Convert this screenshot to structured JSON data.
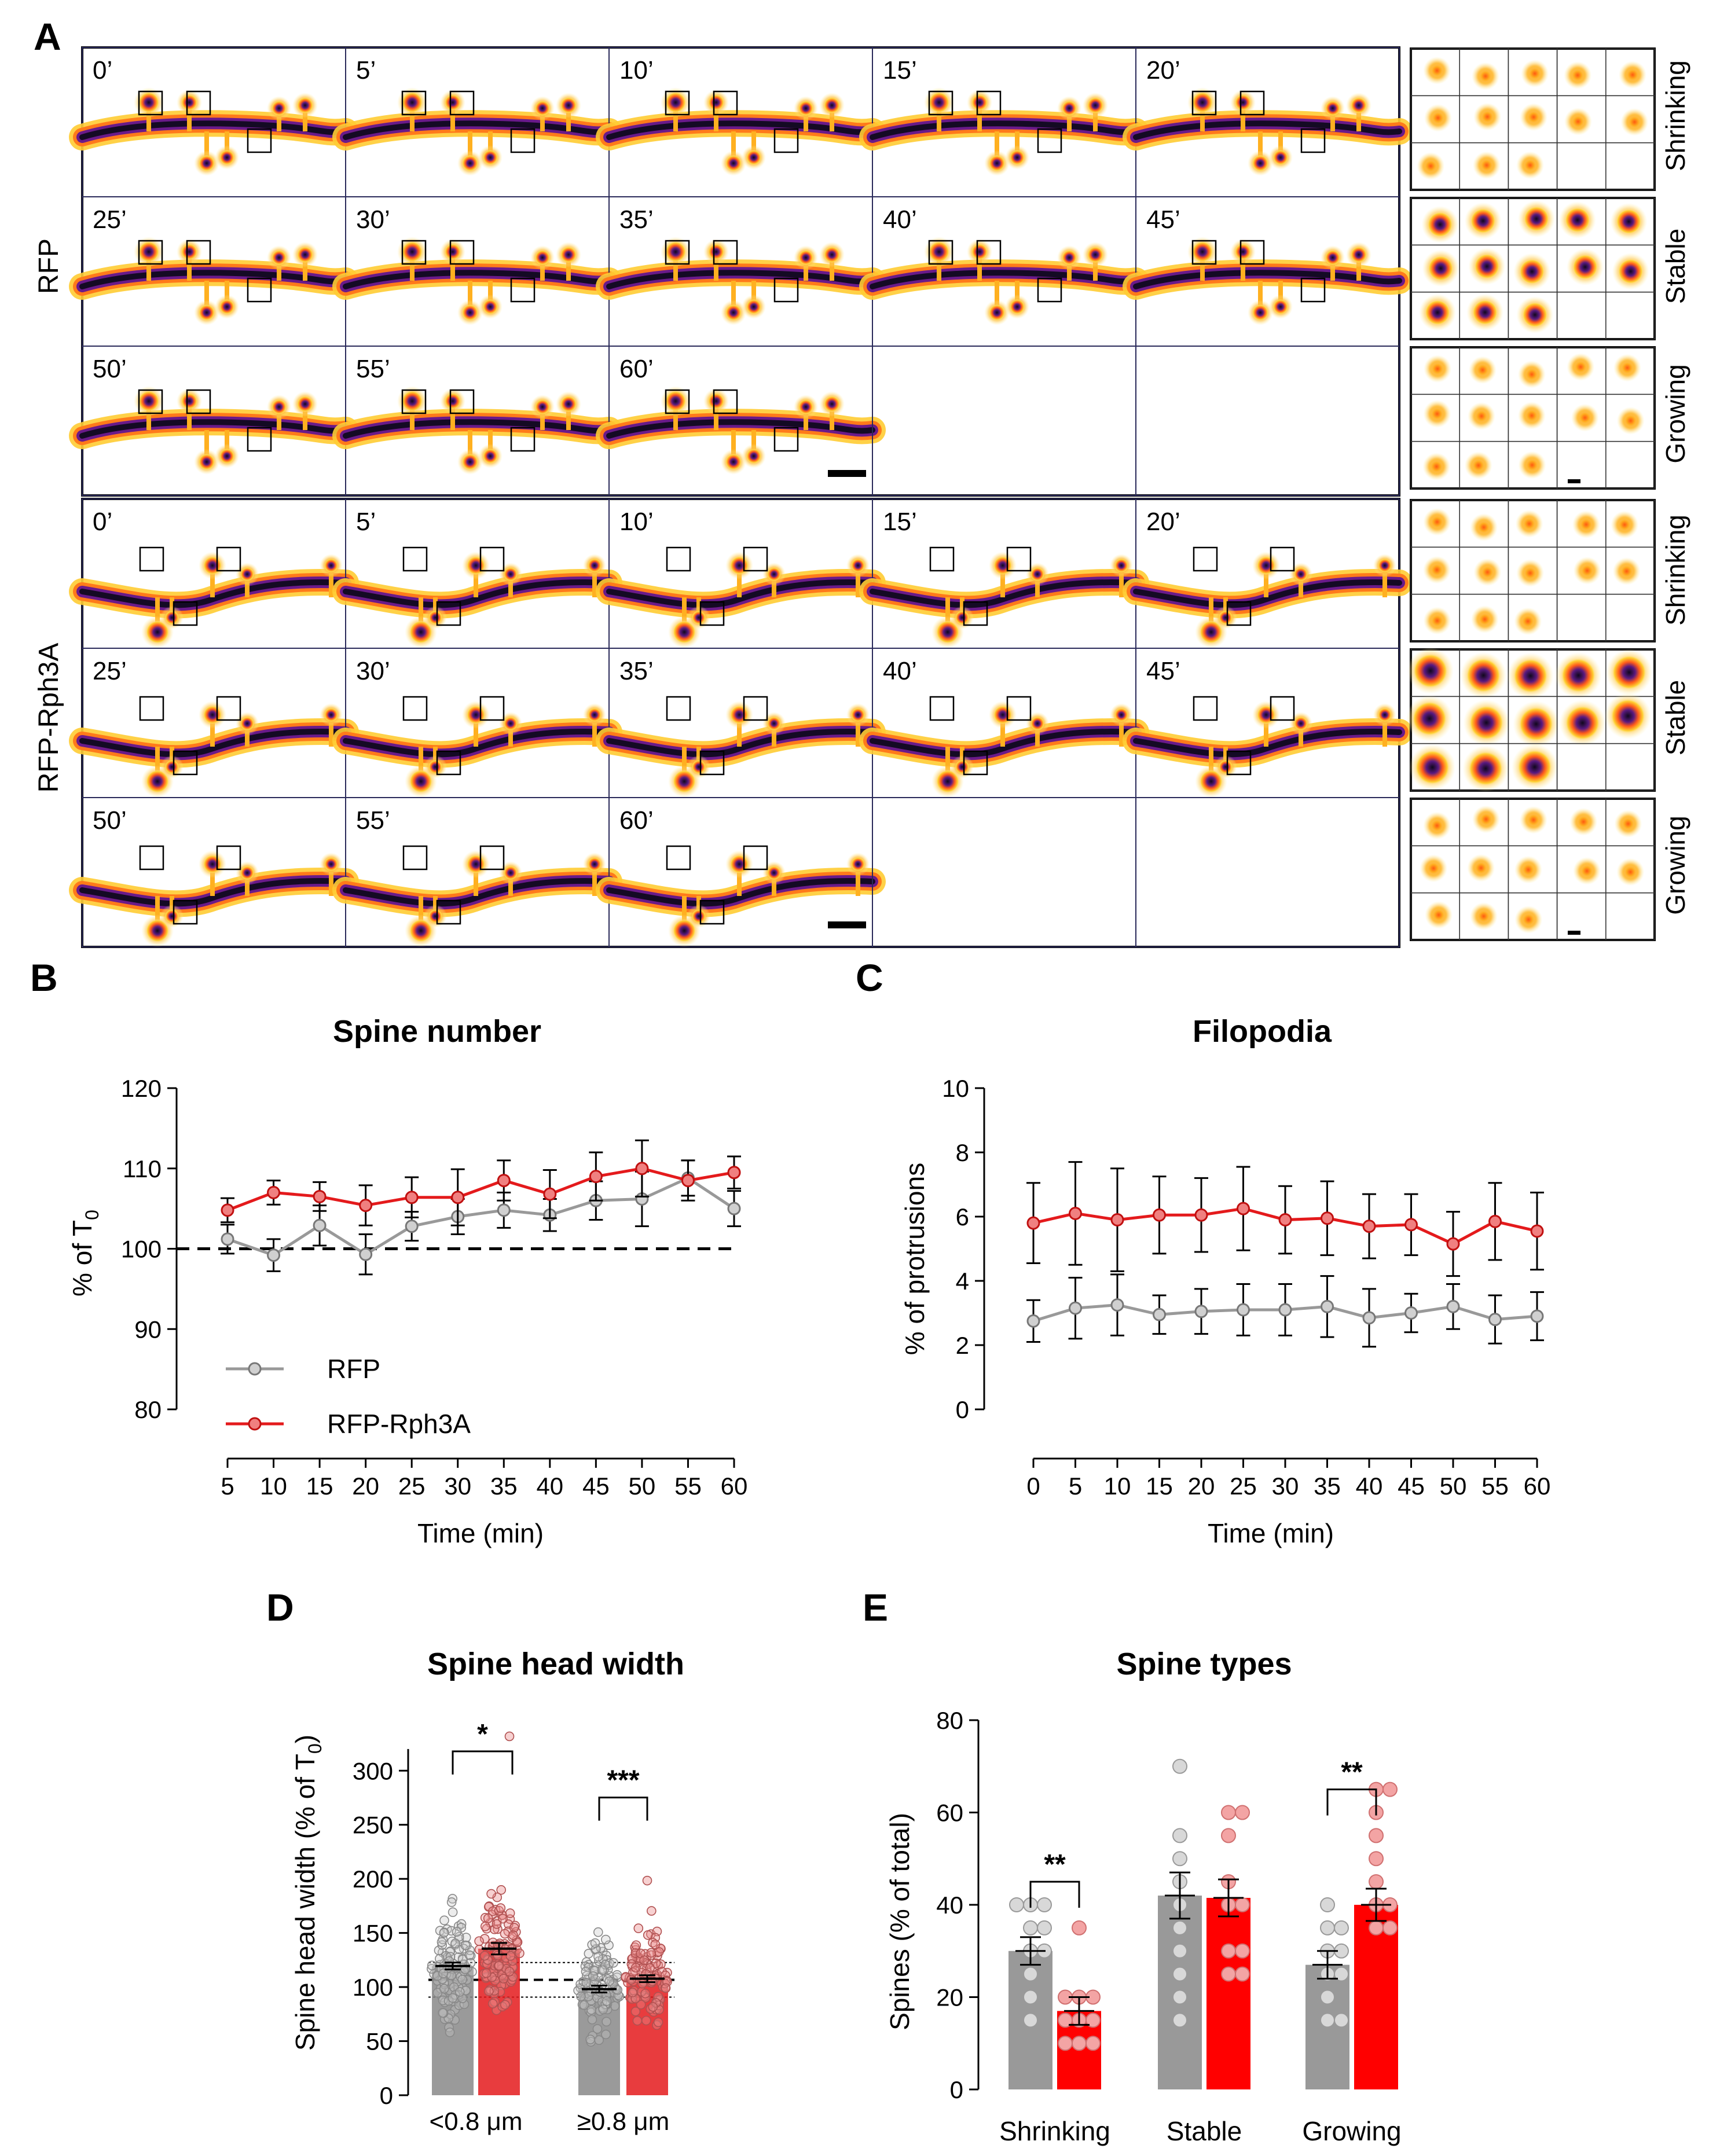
{
  "panels": {
    "A": {
      "letter": "A",
      "groups": [
        {
          "label": "RFP",
          "row_labels": [
            "Shrinking",
            "Stable",
            "Growing"
          ]
        },
        {
          "label": "RFP-Rph3A",
          "row_labels": [
            "Shrinking",
            "Stable",
            "Growing"
          ]
        }
      ],
      "timepoints": [
        "0’",
        "5’",
        "10’",
        "15’",
        "20’",
        "25’",
        "30’",
        "35’",
        "40’",
        "45’",
        "50’",
        "55’",
        "60’"
      ]
    },
    "B": {
      "letter": "B"
    },
    "C": {
      "letter": "C"
    },
    "D": {
      "letter": "D"
    },
    "E": {
      "letter": "E"
    }
  },
  "colors": {
    "rfp": "#999999",
    "rph3a": "#e41a1c",
    "rph3a_light": "#f3a4a4",
    "rfp_dot": "#cccccc"
  },
  "chart_data": [
    {
      "id": "B",
      "type": "line",
      "title": "Spine number",
      "xlabel": "Time (min)",
      "ylabel_main": "% of T",
      "ylabel_sub": "0",
      "x": [
        5,
        10,
        15,
        20,
        25,
        30,
        35,
        40,
        45,
        50,
        55,
        60
      ],
      "xticks": [
        "5",
        "10",
        "15",
        "20",
        "25",
        "30",
        "35",
        "40",
        "45",
        "50",
        "55",
        "60"
      ],
      "ylim": [
        80,
        120
      ],
      "yticks": [
        "80",
        "90",
        "100",
        "110",
        "120"
      ],
      "reference_line": 100,
      "legend": [
        "RFP",
        "RFP-Rph3A"
      ],
      "series": [
        {
          "name": "RFP",
          "values": [
            101.2,
            99.2,
            102.9,
            99.3,
            102.8,
            104.0,
            104.8,
            104.2,
            106.0,
            106.2,
            108.8,
            105.0
          ],
          "errors": [
            1.8,
            2.0,
            2.5,
            2.5,
            1.8,
            2.2,
            2.2,
            2.0,
            2.4,
            3.4,
            2.2,
            2.2
          ]
        },
        {
          "name": "RFP-Rph3A",
          "values": [
            104.8,
            107.0,
            106.5,
            105.4,
            106.4,
            106.4,
            108.5,
            106.8,
            109.0,
            110.0,
            108.5,
            109.5
          ],
          "errors": [
            1.5,
            1.5,
            1.8,
            2.5,
            2.5,
            3.5,
            2.5,
            3.0,
            3.0,
            3.5,
            2.5,
            2.0
          ]
        }
      ]
    },
    {
      "id": "C",
      "type": "line",
      "title": "Filopodia",
      "xlabel": "Time (min)",
      "ylabel": "% of protrusions",
      "x": [
        0,
        5,
        10,
        15,
        20,
        25,
        30,
        35,
        40,
        45,
        50,
        55,
        60
      ],
      "xticks": [
        "0",
        "5",
        "10",
        "15",
        "20",
        "25",
        "30",
        "35",
        "40",
        "45",
        "50",
        "55",
        "60"
      ],
      "ylim": [
        0,
        10
      ],
      "yticks": [
        "0",
        "2",
        "4",
        "6",
        "8",
        "10"
      ],
      "series": [
        {
          "name": "RFP",
          "values": [
            2.75,
            3.15,
            3.25,
            2.95,
            3.05,
            3.1,
            3.1,
            3.2,
            2.85,
            3.0,
            3.2,
            2.8,
            2.9
          ],
          "errors": [
            0.65,
            0.95,
            0.95,
            0.6,
            0.7,
            0.8,
            0.8,
            0.95,
            0.9,
            0.6,
            0.7,
            0.75,
            0.75
          ]
        },
        {
          "name": "RFP-Rph3A",
          "values": [
            5.8,
            6.1,
            5.9,
            6.05,
            6.05,
            6.25,
            5.9,
            5.95,
            5.7,
            5.75,
            5.15,
            5.85,
            5.55
          ],
          "errors": [
            1.25,
            1.6,
            1.6,
            1.2,
            1.15,
            1.3,
            1.05,
            1.15,
            1.0,
            0.95,
            1.0,
            1.2,
            1.2
          ]
        }
      ]
    },
    {
      "id": "D",
      "type": "scatter",
      "title": "Spine head width",
      "ylabel_main": "Spine head width (% of T",
      "ylabel_sub": "0",
      "ylabel_end": ")",
      "ylim": [
        0,
        320
      ],
      "yticks": [
        "0",
        "50",
        "100",
        "150",
        "200",
        "250",
        "300"
      ],
      "categories": [
        "<0.8 μm",
        "≥0.8 μm"
      ],
      "reference_lines": [
        85,
        100,
        115
      ],
      "series": [
        {
          "name": "RFP",
          "means": [
            112,
            92
          ],
          "sems": [
            3,
            3
          ]
        },
        {
          "name": "RFP-Rph3A",
          "means": [
            127,
            101
          ],
          "sems": [
            5,
            3
          ]
        }
      ],
      "significance": [
        "*",
        "***"
      ]
    },
    {
      "id": "E",
      "type": "bar",
      "title": "Spine types",
      "ylabel": "Spines (% of total)",
      "ylim": [
        0,
        80
      ],
      "yticks": [
        "0",
        "20",
        "40",
        "60",
        "80"
      ],
      "categories": [
        "Shrinking",
        "Stable",
        "Growing"
      ],
      "series": [
        {
          "name": "RFP",
          "values": [
            30,
            42,
            27
          ],
          "errors": [
            3,
            5,
            3
          ],
          "points": [
            [
              40,
              40,
              40,
              35,
              35,
              30,
              30,
              25,
              20,
              15
            ],
            [
              70,
              55,
              50,
              45,
              40,
              35,
              30,
              25,
              20,
              15
            ],
            [
              40,
              35,
              35,
              30,
              25,
              20,
              15,
              15,
              30,
              25
            ]
          ]
        },
        {
          "name": "RFP-Rph3A",
          "values": [
            17,
            41.5,
            40
          ],
          "errors": [
            3,
            4,
            3.5
          ],
          "points": [
            [
              35,
              20,
              20,
              15,
              15,
              10,
              10,
              15,
              20,
              10
            ],
            [
              60,
              60,
              55,
              45,
              40,
              40,
              30,
              25,
              25,
              30
            ],
            [
              65,
              65,
              60,
              55,
              50,
              45,
              40,
              35,
              35,
              40
            ]
          ]
        }
      ],
      "significance": [
        "**",
        "",
        "**"
      ]
    }
  ]
}
